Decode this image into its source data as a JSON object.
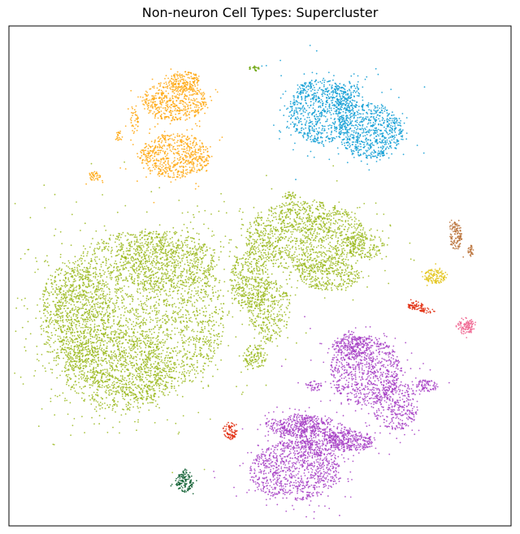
{
  "chart_data": {
    "type": "scatter",
    "title": "Non-neuron Cell Types: Supercluster",
    "xlabel": "",
    "ylabel": "",
    "xticks": [],
    "yticks": [],
    "grid": false,
    "legend": "none",
    "clusters": [
      {
        "color": "#9ab81c",
        "marks": [
          {
            "cx": 0.26,
            "cy": 0.58,
            "rx": 0.17,
            "ry": 0.17,
            "n": 2600
          },
          {
            "cx": 0.13,
            "cy": 0.58,
            "rx": 0.07,
            "ry": 0.11,
            "n": 700
          },
          {
            "cx": 0.22,
            "cy": 0.69,
            "rx": 0.11,
            "ry": 0.08,
            "n": 800
          },
          {
            "cx": 0.31,
            "cy": 0.47,
            "rx": 0.1,
            "ry": 0.06,
            "n": 600
          },
          {
            "cx": 0.48,
            "cy": 0.51,
            "rx": 0.04,
            "ry": 0.06,
            "n": 400
          },
          {
            "cx": 0.59,
            "cy": 0.42,
            "rx": 0.12,
            "ry": 0.07,
            "n": 1300
          },
          {
            "cx": 0.52,
            "cy": 0.57,
            "rx": 0.04,
            "ry": 0.06,
            "n": 300
          },
          {
            "cx": 0.64,
            "cy": 0.5,
            "rx": 0.06,
            "ry": 0.03,
            "n": 300
          },
          {
            "cx": 0.71,
            "cy": 0.44,
            "rx": 0.04,
            "ry": 0.025,
            "n": 160
          },
          {
            "cx": 0.49,
            "cy": 0.66,
            "rx": 0.025,
            "ry": 0.025,
            "n": 120
          },
          {
            "cx": 0.56,
            "cy": 0.34,
            "rx": 0.012,
            "ry": 0.008,
            "n": 30
          }
        ]
      },
      {
        "color": "#ffa60a",
        "marks": [
          {
            "cx": 0.33,
            "cy": 0.15,
            "rx": 0.065,
            "ry": 0.04,
            "n": 500
          },
          {
            "cx": 0.33,
            "cy": 0.26,
            "rx": 0.07,
            "ry": 0.045,
            "n": 600
          },
          {
            "cx": 0.35,
            "cy": 0.11,
            "rx": 0.03,
            "ry": 0.02,
            "n": 150
          },
          {
            "cx": 0.25,
            "cy": 0.19,
            "rx": 0.008,
            "ry": 0.025,
            "n": 40
          },
          {
            "cx": 0.22,
            "cy": 0.22,
            "rx": 0.007,
            "ry": 0.01,
            "n": 20
          },
          {
            "cx": 0.17,
            "cy": 0.3,
            "rx": 0.012,
            "ry": 0.01,
            "n": 40
          }
        ]
      },
      {
        "color": "#0a9bd4",
        "marks": [
          {
            "cx": 0.62,
            "cy": 0.17,
            "rx": 0.065,
            "ry": 0.065,
            "n": 700
          },
          {
            "cx": 0.72,
            "cy": 0.21,
            "rx": 0.065,
            "ry": 0.055,
            "n": 700
          },
          {
            "cx": 0.67,
            "cy": 0.14,
            "rx": 0.03,
            "ry": 0.03,
            "n": 150
          }
        ]
      },
      {
        "color": "#a63ec4",
        "marks": [
          {
            "cx": 0.57,
            "cy": 0.89,
            "rx": 0.09,
            "ry": 0.06,
            "n": 900
          },
          {
            "cx": 0.61,
            "cy": 0.82,
            "rx": 0.07,
            "ry": 0.04,
            "n": 500
          },
          {
            "cx": 0.68,
            "cy": 0.83,
            "rx": 0.05,
            "ry": 0.02,
            "n": 300
          },
          {
            "cx": 0.58,
            "cy": 0.8,
            "rx": 0.035,
            "ry": 0.025,
            "n": 200
          },
          {
            "cx": 0.71,
            "cy": 0.69,
            "rx": 0.07,
            "ry": 0.07,
            "n": 800
          },
          {
            "cx": 0.77,
            "cy": 0.76,
            "rx": 0.045,
            "ry": 0.05,
            "n": 350
          },
          {
            "cx": 0.68,
            "cy": 0.64,
            "rx": 0.035,
            "ry": 0.025,
            "n": 200
          },
          {
            "cx": 0.83,
            "cy": 0.72,
            "rx": 0.025,
            "ry": 0.012,
            "n": 80
          },
          {
            "cx": 0.61,
            "cy": 0.72,
            "rx": 0.015,
            "ry": 0.01,
            "n": 40
          },
          {
            "cx": 0.53,
            "cy": 0.8,
            "rx": 0.02,
            "ry": 0.015,
            "n": 60
          }
        ]
      },
      {
        "color": "#b86e34",
        "marks": [
          {
            "cx": 0.89,
            "cy": 0.42,
            "rx": 0.012,
            "ry": 0.028,
            "n": 120
          },
          {
            "cx": 0.92,
            "cy": 0.45,
            "rx": 0.006,
            "ry": 0.012,
            "n": 30
          }
        ]
      },
      {
        "color": "#e3c314",
        "marks": [
          {
            "cx": 0.85,
            "cy": 0.5,
            "rx": 0.022,
            "ry": 0.015,
            "n": 120
          }
        ]
      },
      {
        "color": "#e0290b",
        "marks": [
          {
            "cx": 0.81,
            "cy": 0.56,
            "rx": 0.015,
            "ry": 0.008,
            "n": 60
          },
          {
            "cx": 0.83,
            "cy": 0.57,
            "rx": 0.012,
            "ry": 0.007,
            "n": 30
          },
          {
            "cx": 0.44,
            "cy": 0.81,
            "rx": 0.014,
            "ry": 0.018,
            "n": 80
          }
        ]
      },
      {
        "color": "#ee5d8b",
        "marks": [
          {
            "cx": 0.91,
            "cy": 0.6,
            "rx": 0.016,
            "ry": 0.018,
            "n": 100
          }
        ]
      },
      {
        "color": "#095c2d",
        "marks": [
          {
            "cx": 0.35,
            "cy": 0.91,
            "rx": 0.018,
            "ry": 0.022,
            "n": 130
          }
        ]
      },
      {
        "color": "#6ea60f",
        "marks": [
          {
            "cx": 0.49,
            "cy": 0.085,
            "rx": 0.012,
            "ry": 0.005,
            "n": 25
          }
        ]
      }
    ]
  }
}
